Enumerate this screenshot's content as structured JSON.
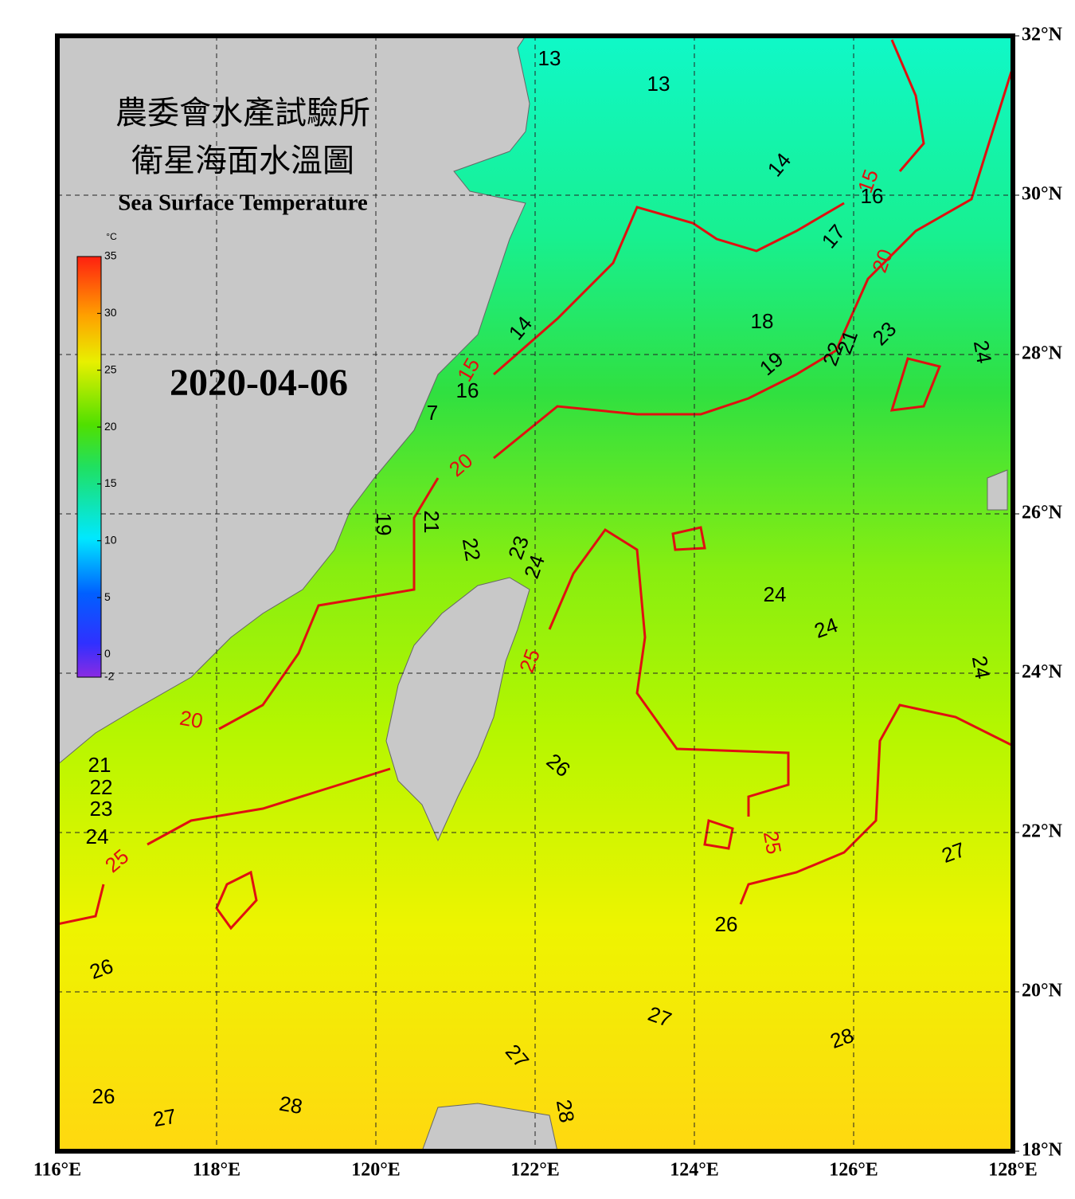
{
  "header": {
    "title_zh": "農委會水產試驗所",
    "subtitle_zh": "衛星海面水溫圖",
    "title_en": "Sea Surface Temperature",
    "date": "2020-04-06"
  },
  "colorbar": {
    "unit": "°C",
    "range": [
      -2,
      35
    ],
    "ticks": [
      35,
      30,
      25,
      20,
      15,
      10,
      5,
      0,
      -2
    ]
  },
  "map": {
    "lon_ticks": [
      {
        "value": 116,
        "label": "116°E"
      },
      {
        "value": 118,
        "label": "118°E"
      },
      {
        "value": 120,
        "label": "120°E"
      },
      {
        "value": 122,
        "label": "122°E"
      },
      {
        "value": 124,
        "label": "124°E"
      },
      {
        "value": 126,
        "label": "126°E"
      },
      {
        "value": 128,
        "label": "128°E"
      }
    ],
    "lat_ticks": [
      {
        "value": 18,
        "label": "18°N"
      },
      {
        "value": 20,
        "label": "20°N"
      },
      {
        "value": 22,
        "label": "22°N"
      },
      {
        "value": 24,
        "label": "24°N"
      },
      {
        "value": 26,
        "label": "26°N"
      },
      {
        "value": 28,
        "label": "28°N"
      },
      {
        "value": 30,
        "label": "30°N"
      },
      {
        "value": 32,
        "label": "32°N"
      }
    ],
    "contour_labels": [
      13,
      13,
      14,
      15,
      16,
      17,
      20,
      14,
      18,
      15,
      16,
      19,
      22,
      21,
      23,
      24,
      7,
      20,
      19,
      21,
      22,
      23,
      24,
      24,
      24,
      25,
      24,
      20,
      26,
      21,
      22,
      23,
      24,
      25,
      25,
      27,
      26,
      26,
      27,
      28,
      27,
      26,
      27,
      28,
      28
    ]
  }
}
